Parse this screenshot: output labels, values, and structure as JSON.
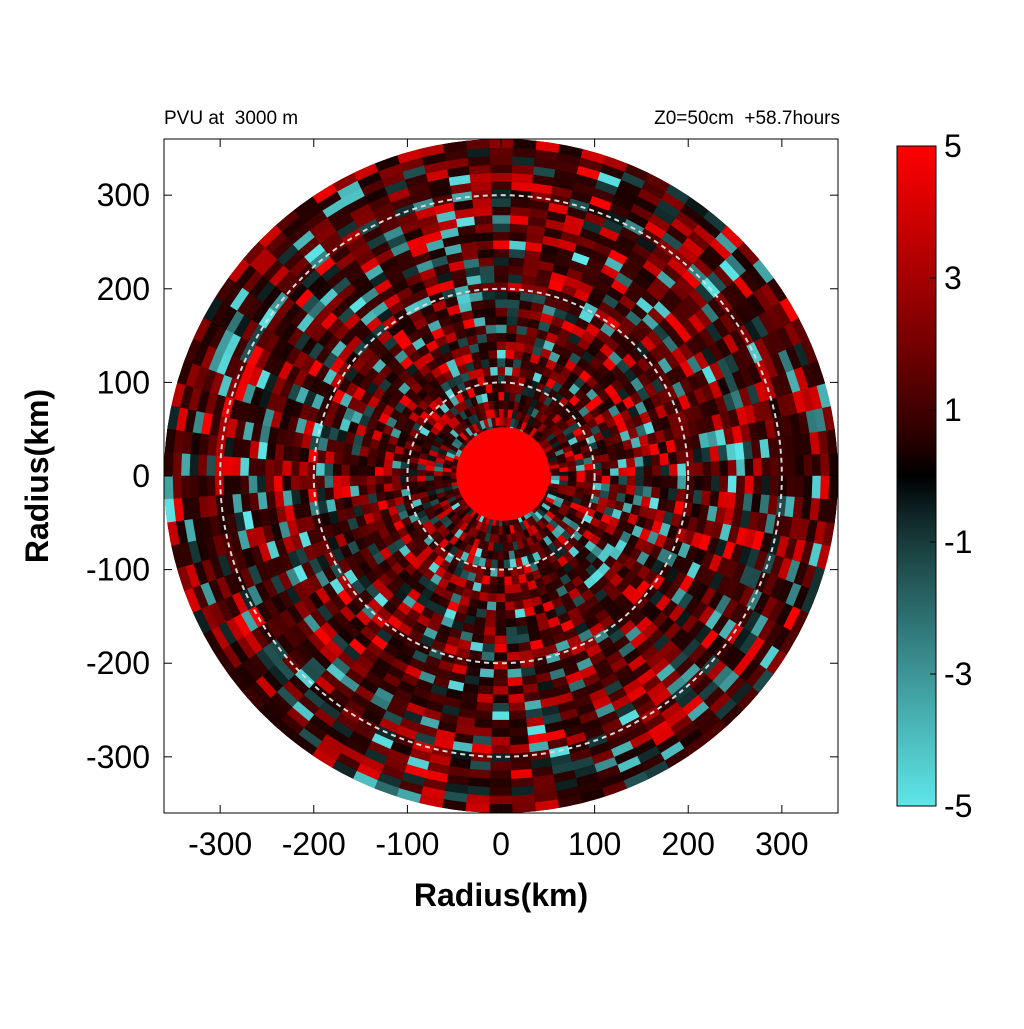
{
  "chart_data": {
    "type": "heatmap",
    "title_left": "PVU at  3000 m",
    "title_right": "Z0=50cm  +58.7hours",
    "xlabel": "Radius(km)",
    "ylabel": "Radius(km)",
    "xlim": [
      -360,
      360
    ],
    "ylim": [
      -360,
      360
    ],
    "x_ticks": [
      -300,
      -200,
      -100,
      0,
      100,
      200,
      300
    ],
    "y_ticks": [
      300,
      200,
      100,
      0,
      -100,
      -200,
      -300
    ],
    "domain_radius_km": 360,
    "reference_circles_km": [
      100,
      200,
      300
    ],
    "colorbar": {
      "min": -5,
      "max": 5,
      "ticks": [
        5,
        3,
        1,
        -1,
        -3,
        -5
      ],
      "colors": {
        "min": "#5ee6e8",
        "mid": "#000000",
        "max": "#ff0000"
      }
    },
    "core": {
      "radius_km": 50,
      "value": 5
    }
  }
}
